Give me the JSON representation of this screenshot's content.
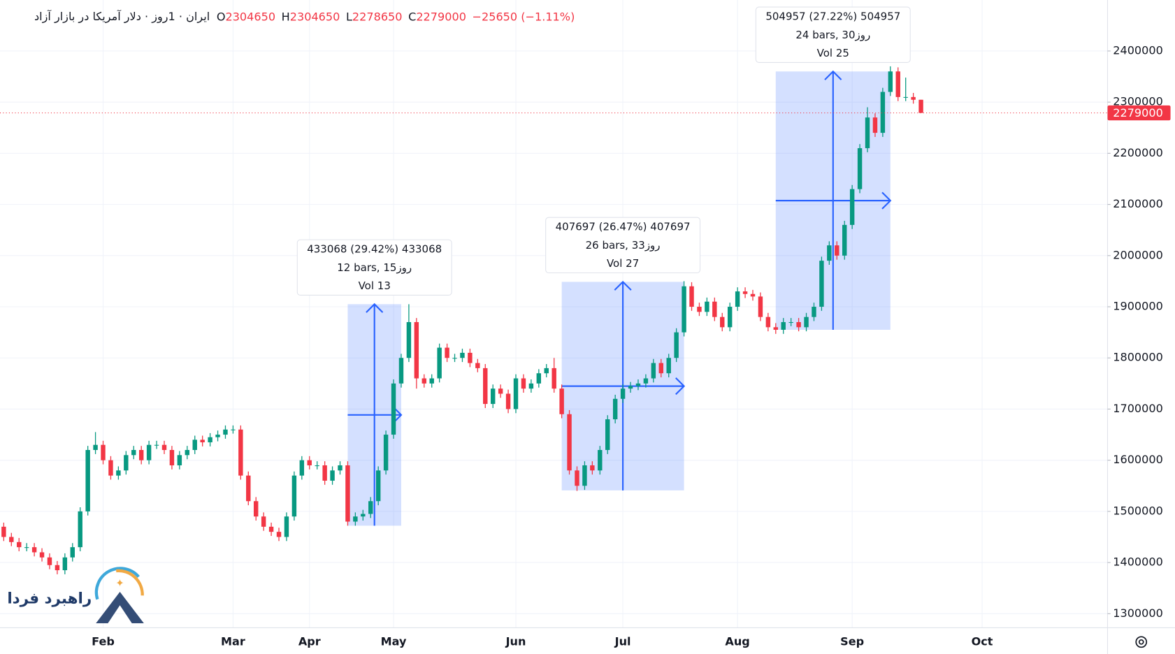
{
  "chart_data": {
    "type": "candlestick",
    "title": "ایران · 1روز · دلار آمریکا در بازار آزاد",
    "ohlc_labels": [
      "O",
      "H",
      "L",
      "C"
    ],
    "change_label": "−25650 (−1.11%)",
    "up_color": "#089981",
    "down_color": "#f23645",
    "grid": true,
    "ylim": [
      1272500,
      2499600
    ],
    "yticks": [
      1300000,
      1400000,
      1500000,
      1600000,
      1700000,
      1800000,
      1900000,
      2000000,
      2100000,
      2200000,
      2300000,
      2400000
    ],
    "categories": [
      null,
      null,
      null,
      null,
      null,
      null,
      null,
      null,
      null,
      null,
      null,
      null,
      null,
      "Feb",
      null,
      null,
      null,
      null,
      null,
      null,
      null,
      null,
      null,
      null,
      null,
      null,
      null,
      null,
      null,
      null,
      "Mar",
      null,
      null,
      null,
      null,
      null,
      null,
      null,
      null,
      null,
      "Apr",
      null,
      null,
      null,
      null,
      null,
      null,
      null,
      null,
      null,
      null,
      "May",
      null,
      null,
      null,
      null,
      null,
      null,
      null,
      null,
      null,
      null,
      null,
      null,
      null,
      null,
      null,
      "Jun",
      null,
      null,
      null,
      null,
      null,
      null,
      null,
      null,
      null,
      null,
      null,
      null,
      null,
      "Jul",
      null,
      null,
      null,
      null,
      null,
      null,
      null,
      null,
      null,
      null,
      null,
      null,
      null,
      null,
      "Aug",
      null,
      null,
      null,
      null,
      null,
      null,
      null,
      null,
      null,
      null,
      null,
      null,
      null,
      null,
      "Sep",
      null,
      null,
      null,
      null,
      null,
      null,
      null,
      null,
      null,
      null,
      null,
      null,
      null,
      null,
      null,
      null,
      "Oct",
      null,
      null,
      null,
      null,
      null,
      null,
      null,
      null,
      null,
      null,
      null,
      null,
      null,
      null,
      null
    ],
    "open": [
      1470000,
      1450000,
      1440000,
      1430000,
      1430000,
      1420000,
      1410000,
      1395000,
      1385000,
      1410000,
      1430000,
      1500000,
      1620000,
      1630000,
      1600000,
      1570000,
      1580000,
      1610000,
      1620000,
      1600000,
      1630000,
      1630000,
      1620000,
      1590000,
      1610000,
      1620000,
      1640000,
      1635000,
      1645000,
      1650000,
      1660000,
      1660000,
      1570000,
      1520000,
      1490000,
      1470000,
      1460000,
      1450000,
      1490000,
      1570000,
      1600000,
      1590000,
      1590000,
      1560000,
      1580000,
      1590000,
      1480000,
      1490000,
      1495000,
      1520000,
      1580000,
      1650000,
      1750000,
      1800000,
      1870000,
      1760000,
      1750000,
      1760000,
      1820000,
      1800000,
      1800000,
      1810000,
      1790000,
      1780000,
      1710000,
      1740000,
      1730000,
      1700000,
      1760000,
      1740000,
      1750000,
      1770000,
      1780000,
      1740000,
      1690000,
      1580000,
      1550000,
      1590000,
      1580000,
      1620000,
      1680000,
      1720000,
      1740000,
      1745000,
      1750000,
      1760000,
      1790000,
      1770000,
      1800000,
      1850000,
      1940000,
      1900000,
      1890000,
      1910000,
      1880000,
      1860000,
      1900000,
      1930000,
      1925000,
      1920000,
      1880000,
      1860000,
      1855000,
      1870000,
      1870000,
      1860000,
      1880000,
      1900000,
      1990000,
      2020000,
      2000000,
      2060000,
      2130000,
      2210000,
      2270000,
      2240000,
      2320000,
      2360000,
      2310000,
      2310000,
      2304650,
      null,
      null,
      null,
      null,
      null,
      null,
      null,
      null,
      null,
      null,
      null,
      null,
      null,
      null,
      null,
      null,
      null,
      null,
      null,
      null,
      null,
      null,
      null
    ],
    "high": [
      1478000,
      1458000,
      1448000,
      1438000,
      1438000,
      1428000,
      1418000,
      1403000,
      1418000,
      1438000,
      1508000,
      1628000,
      1655000,
      1638000,
      1608000,
      1588000,
      1618000,
      1628000,
      1628000,
      1638000,
      1638000,
      1638000,
      1628000,
      1618000,
      1628000,
      1648000,
      1648000,
      1653000,
      1658000,
      1668000,
      1668000,
      1668000,
      1578000,
      1528000,
      1498000,
      1478000,
      1468000,
      1498000,
      1578000,
      1608000,
      1608000,
      1598000,
      1598000,
      1588000,
      1598000,
      1598000,
      1498000,
      1503000,
      1528000,
      1588000,
      1658000,
      1758000,
      1808000,
      1905000,
      1878000,
      1768000,
      1768000,
      1828000,
      1828000,
      1808000,
      1818000,
      1818000,
      1798000,
      1788000,
      1748000,
      1748000,
      1738000,
      1768000,
      1768000,
      1758000,
      1778000,
      1788000,
      1800000,
      1748000,
      1698000,
      1588000,
      1598000,
      1598000,
      1628000,
      1688000,
      1728000,
      1748000,
      1753000,
      1758000,
      1768000,
      1798000,
      1798000,
      1808000,
      1858000,
      1950000,
      1948000,
      1908000,
      1918000,
      1918000,
      1888000,
      1908000,
      1938000,
      1938000,
      1933000,
      1928000,
      1888000,
      1868000,
      1878000,
      1878000,
      1878000,
      1888000,
      1908000,
      1998000,
      2028000,
      2028000,
      2068000,
      2138000,
      2218000,
      2290000,
      2278000,
      2328000,
      2370000,
      2368000,
      2348000,
      2318000,
      2304650,
      null,
      null,
      null,
      null,
      null,
      null,
      null,
      null,
      null,
      null,
      null,
      null,
      null,
      null,
      null,
      null,
      null,
      null,
      null,
      null,
      null,
      null,
      null
    ],
    "low": [
      1442000,
      1432000,
      1422000,
      1422000,
      1412000,
      1402000,
      1387000,
      1377000,
      1377000,
      1402000,
      1422000,
      1492000,
      1612000,
      1592000,
      1562000,
      1562000,
      1572000,
      1602000,
      1592000,
      1592000,
      1622000,
      1612000,
      1582000,
      1582000,
      1602000,
      1612000,
      1627000,
      1627000,
      1637000,
      1642000,
      1652000,
      1562000,
      1512000,
      1482000,
      1462000,
      1452000,
      1442000,
      1442000,
      1482000,
      1562000,
      1582000,
      1582000,
      1552000,
      1552000,
      1572000,
      1472000,
      1472000,
      1482000,
      1487000,
      1512000,
      1572000,
      1642000,
      1742000,
      1792000,
      1740000,
      1742000,
      1742000,
      1752000,
      1792000,
      1792000,
      1792000,
      1782000,
      1772000,
      1702000,
      1702000,
      1722000,
      1692000,
      1692000,
      1732000,
      1732000,
      1742000,
      1762000,
      1732000,
      1682000,
      1572000,
      1540000,
      1542000,
      1572000,
      1572000,
      1612000,
      1672000,
      1712000,
      1732000,
      1737000,
      1742000,
      1752000,
      1762000,
      1762000,
      1792000,
      1842000,
      1892000,
      1882000,
      1882000,
      1872000,
      1852000,
      1852000,
      1892000,
      1917000,
      1912000,
      1872000,
      1852000,
      1847000,
      1847000,
      1862000,
      1852000,
      1852000,
      1872000,
      1892000,
      1982000,
      1992000,
      1992000,
      2052000,
      2122000,
      2202000,
      2232000,
      2232000,
      2312000,
      2302000,
      2302000,
      2297000,
      2278650,
      null,
      null,
      null,
      null,
      null,
      null,
      null,
      null,
      null,
      null,
      null,
      null,
      null,
      null,
      null,
      null,
      null,
      null,
      null,
      null,
      null,
      null,
      null
    ],
    "close": [
      1450000,
      1440000,
      1430000,
      1430000,
      1420000,
      1410000,
      1395000,
      1385000,
      1410000,
      1430000,
      1500000,
      1620000,
      1630000,
      1600000,
      1570000,
      1580000,
      1610000,
      1620000,
      1600000,
      1630000,
      1630000,
      1620000,
      1590000,
      1610000,
      1620000,
      1640000,
      1635000,
      1645000,
      1650000,
      1660000,
      1660000,
      1570000,
      1520000,
      1490000,
      1470000,
      1460000,
      1450000,
      1490000,
      1570000,
      1600000,
      1590000,
      1590000,
      1560000,
      1580000,
      1590000,
      1480000,
      1490000,
      1495000,
      1520000,
      1580000,
      1650000,
      1750000,
      1800000,
      1870000,
      1760000,
      1750000,
      1760000,
      1820000,
      1800000,
      1800000,
      1810000,
      1790000,
      1780000,
      1710000,
      1740000,
      1730000,
      1700000,
      1760000,
      1740000,
      1750000,
      1770000,
      1780000,
      1740000,
      1690000,
      1580000,
      1550000,
      1590000,
      1580000,
      1620000,
      1680000,
      1720000,
      1740000,
      1745000,
      1750000,
      1760000,
      1790000,
      1770000,
      1800000,
      1850000,
      1940000,
      1900000,
      1890000,
      1910000,
      1880000,
      1860000,
      1900000,
      1930000,
      1925000,
      1920000,
      1880000,
      1860000,
      1855000,
      1870000,
      1870000,
      1860000,
      1880000,
      1900000,
      1990000,
      2020000,
      2000000,
      2060000,
      2130000,
      2210000,
      2270000,
      2240000,
      2320000,
      2360000,
      2310000,
      2310000,
      2304650,
      2279000,
      null,
      null,
      null,
      null,
      null,
      null,
      null,
      null,
      null,
      null,
      null,
      null,
      null,
      null,
      null,
      null,
      null,
      null,
      null,
      null,
      null,
      null,
      null
    ],
    "measures": [
      {
        "texts": [
          "433068 (29.42%) 433068",
          "12 bars, 15روز",
          "Vol 13"
        ],
        "x_range": [
          45,
          52
        ],
        "y_range": [
          1472000,
          1905068
        ]
      },
      {
        "texts": [
          "407697 (26.47%) 407697",
          "26 bars, 33روز",
          "Vol 27"
        ],
        "x_range": [
          73,
          89
        ],
        "y_range": [
          1541000,
          1948697
        ]
      },
      {
        "texts": [
          "504957 (27.22%) 504957",
          "24 bars, 30روز",
          "Vol 25"
        ],
        "x_range": [
          101,
          116
        ],
        "y_range": [
          1855000,
          2359957
        ]
      }
    ]
  },
  "watermark": "راهبرد فردا"
}
